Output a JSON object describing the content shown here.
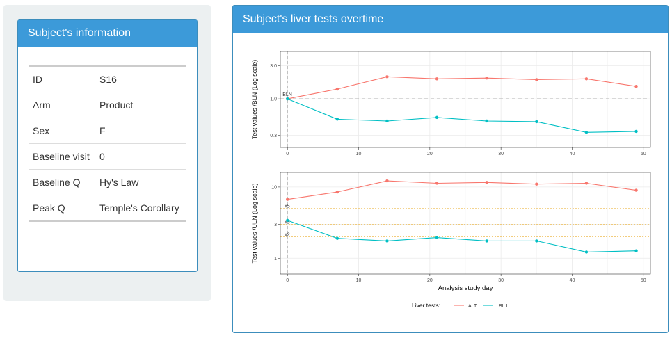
{
  "info_panel": {
    "title": "Subject's information",
    "rows": [
      {
        "key": "ID",
        "value": "S16"
      },
      {
        "key": "Arm",
        "value": "Product"
      },
      {
        "key": "Sex",
        "value": "F"
      },
      {
        "key": "Baseline visit",
        "value": "0"
      },
      {
        "key": "Baseline Q",
        "value": "Hy's Law"
      },
      {
        "key": "Peak Q",
        "value": "Temple's Corollary"
      }
    ]
  },
  "chart_panel": {
    "title": "Subject's liver tests overtime",
    "colors": {
      "ALT": "#f8766d",
      "BILI": "#00bfc4"
    },
    "legend": {
      "title": "Liver tests:",
      "items": [
        "ALT",
        "BILI"
      ]
    }
  },
  "chart_data": [
    {
      "type": "line",
      "ylabel": "Test values /BLN (Log scale)",
      "xlabel": "",
      "log_y": true,
      "x_ticks": [
        0,
        10,
        20,
        30,
        40,
        50
      ],
      "y_ticks": [
        0.3,
        1.0,
        3.0
      ],
      "y_tick_labels": [
        "0.3",
        "1.0",
        "3.0"
      ],
      "xlim": [
        -1,
        51
      ],
      "ylim": [
        0.2,
        4.8
      ],
      "grid": true,
      "reference_line": {
        "value": 1.0,
        "label": "BLN",
        "vertical_x": 0
      },
      "x": [
        0,
        7,
        14,
        21,
        28,
        35,
        42,
        49
      ],
      "series": [
        {
          "name": "ALT",
          "values": [
            1.0,
            1.38,
            2.08,
            1.94,
            1.99,
            1.89,
            1.94,
            1.51
          ]
        },
        {
          "name": "BILI",
          "values": [
            1.0,
            0.51,
            0.48,
            0.54,
            0.48,
            0.47,
            0.33,
            0.34
          ]
        }
      ]
    },
    {
      "type": "line",
      "ylabel": "Test values /ULN (Log scale)",
      "xlabel": "Analysis study day",
      "log_y": true,
      "x_ticks": [
        0,
        10,
        20,
        30,
        40,
        50
      ],
      "y_ticks": [
        1,
        3,
        10
      ],
      "y_tick_labels": [
        "1",
        "3",
        "10"
      ],
      "xlim": [
        -1,
        51
      ],
      "ylim": [
        0.6,
        16
      ],
      "grid": true,
      "reference_lines": [
        {
          "value": 5,
          "label": "x5"
        },
        {
          "value": 3,
          "label": "x3"
        },
        {
          "value": 2,
          "label": "x2"
        }
      ],
      "x": [
        0,
        7,
        14,
        21,
        28,
        35,
        42,
        49
      ],
      "series": [
        {
          "name": "ALT",
          "values": [
            6.7,
            8.5,
            12.2,
            11.3,
            11.6,
            11.0,
            11.3,
            9.0
          ]
        },
        {
          "name": "BILI",
          "values": [
            3.4,
            1.9,
            1.75,
            1.95,
            1.75,
            1.75,
            1.22,
            1.27
          ]
        }
      ]
    }
  ]
}
